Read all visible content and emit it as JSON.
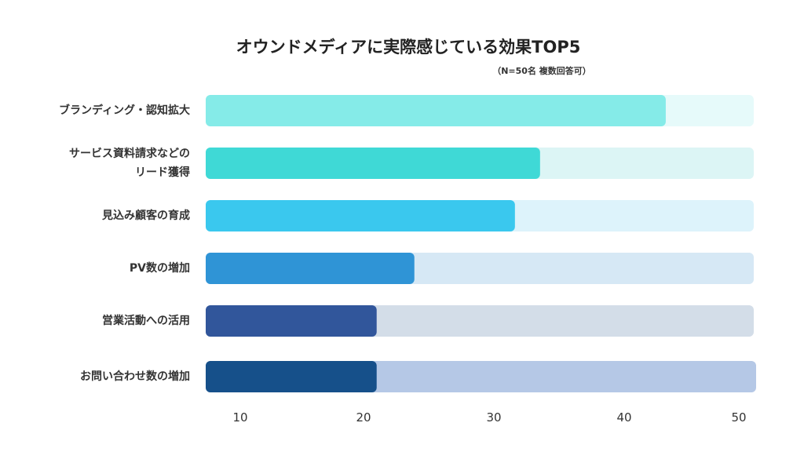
{
  "chart_data": {
    "type": "bar",
    "orientation": "horizontal",
    "title": "オウンドメディアに実際感じている効果TOP5",
    "subtitle": "（N=50名 複数回答可）",
    "categories": [
      [
        "ブランディング・認知拡大"
      ],
      [
        "サービス資料請求などの",
        "リード獲得"
      ],
      [
        "見込み顧客の育成"
      ],
      [
        "PV数の増加"
      ],
      [
        "営業活動への活用"
      ],
      [
        "お問い合わせ数の増加"
      ]
    ],
    "values": [
      44,
      34,
      32,
      24,
      21,
      21
    ],
    "xlim": [
      7.4,
      51
    ],
    "x_ticks": [
      {
        "value": 10,
        "label": "10"
      },
      {
        "value": 20,
        "label": "20"
      },
      {
        "value": 30,
        "label": "30"
      },
      {
        "value": 40,
        "label": "40"
      },
      {
        "value": 50,
        "label": "50"
      }
    ],
    "bar_colors": [
      "#85ebe8",
      "#3fd9d6",
      "#3ac8ee",
      "#2f94d6",
      "#31569b",
      "#16508a"
    ],
    "track_colors": [
      "#e6fafa",
      "#dcf5f5",
      "#ddf3fb",
      "#d6e8f5",
      "#d3dde8",
      "#b5c8e6"
    ]
  }
}
